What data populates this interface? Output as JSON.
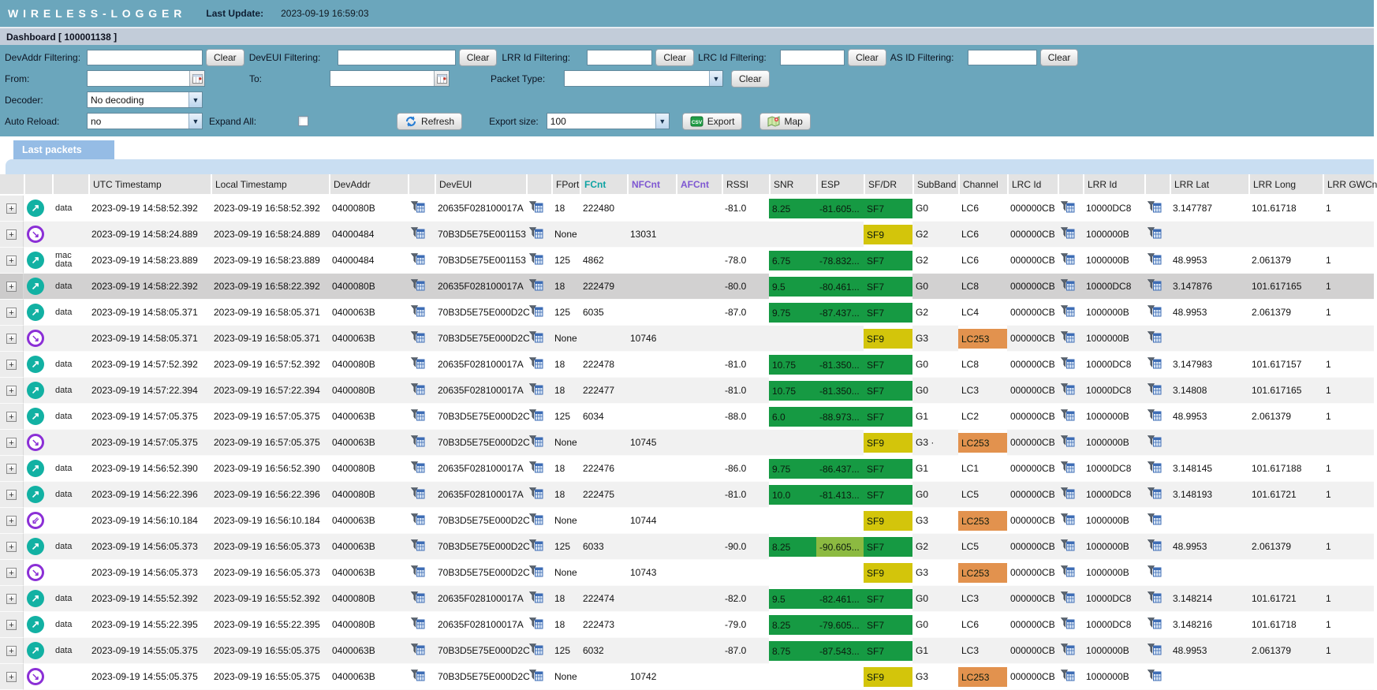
{
  "topbar": {
    "title": "W I R E L E S S - L O G G E R",
    "last_update_label": "Last Update:",
    "last_update_value": "2023-09-19 16:59:03"
  },
  "dashboard": {
    "title": "Dashboard [ 100001138 ]"
  },
  "filters": {
    "devaddr_label": "DevAddr Filtering:",
    "deveui_label": "DevEUI Filtering:",
    "lrrid_label": "LRR Id Filtering:",
    "lrcid_label": "LRC Id Filtering:",
    "asid_label": "AS ID Filtering:",
    "clear_label": "Clear",
    "from_label": "From:",
    "to_label": "To:",
    "packet_type_label": "Packet Type:",
    "packet_type_value": "",
    "decoder_label": "Decoder:",
    "decoder_value": "No decoding",
    "auto_reload_label": "Auto Reload:",
    "auto_reload_value": "no",
    "expand_all_label": "Expand All:",
    "refresh_label": "Refresh",
    "export_size_label": "Export size:",
    "export_size_value": "100",
    "export_label": "Export",
    "map_label": "Map"
  },
  "tab": {
    "label": "Last packets"
  },
  "colors": {
    "topbar_teal": "#6ba6bc",
    "dashbar": "#c2ccd9",
    "tab_blue": "#95bce5",
    "tab_strip": "#c9def2",
    "good_green": "#169a43",
    "mid_green": "#8cba41",
    "warn_yellow": "#d3c50b",
    "alert_orange": "#e2924e",
    "uplink_teal": "#12b1a3",
    "downlink_purple": "#8b2fd6",
    "fcnt_header_teal": "#0fa3a3",
    "nfcnt_header_purple": "#7e57d2"
  },
  "table": {
    "headers": {
      "utc": "UTC Timestamp",
      "local": "Local Timestamp",
      "devaddr": "DevAddr",
      "deveui": "DevEUI",
      "fport": "FPort",
      "fcnt": "FCnt",
      "nfcnt": "NFCnt",
      "afcnt": "AFCnt",
      "rssi": "RSSI",
      "snr": "SNR",
      "esp": "ESP",
      "sf": "SF/DR",
      "subband": "SubBand",
      "channel": "Channel",
      "lrcid": "LRC Id",
      "lrrid": "LRR Id",
      "lrrlat": "LRR Lat",
      "lrrlong": "LRR Long",
      "gwcn": "LRR GWCn"
    },
    "rows": [
      {
        "dir": "up",
        "type": "data",
        "utc": "2023-09-19 14:58:52.392",
        "local": "2023-09-19 16:58:52.392",
        "devaddr": "0400080B",
        "deveui": "20635F028100017A",
        "fport": "18",
        "fcnt": "222480",
        "nfcnt": "",
        "afcnt": "",
        "rssi": "-81.0",
        "snr": "8.25",
        "esp": "-81.605...",
        "sf": "SF7",
        "subband": "G0",
        "channel": "LC6",
        "channel_alert": false,
        "lrcid": "000000CB",
        "lrrid": "10000DC8",
        "lrrlat": "3.147787",
        "lrrlong": "101.61718",
        "gwcn": "1",
        "selected": false
      },
      {
        "dir": "down",
        "type": "",
        "utc": "2023-09-19 14:58:24.889",
        "local": "2023-09-19 16:58:24.889",
        "devaddr": "04000484",
        "deveui": "70B3D5E75E001153",
        "fport": "None",
        "fcnt": "",
        "nfcnt": "13031",
        "afcnt": "",
        "rssi": "",
        "snr": "",
        "esp": "",
        "sf": "SF9",
        "subband": "G2",
        "channel": "LC6",
        "channel_alert": false,
        "lrcid": "000000CB",
        "lrrid": "1000000B",
        "lrrlat": "",
        "lrrlong": "",
        "gwcn": "",
        "selected": false
      },
      {
        "dir": "up",
        "type": "mac data",
        "utc": "2023-09-19 14:58:23.889",
        "local": "2023-09-19 16:58:23.889",
        "devaddr": "04000484",
        "deveui": "70B3D5E75E001153",
        "fport": "125",
        "fcnt": "4862",
        "nfcnt": "",
        "afcnt": "",
        "rssi": "-78.0",
        "snr": "6.75",
        "esp": "-78.832...",
        "sf": "SF7",
        "subband": "G2",
        "channel": "LC6",
        "channel_alert": false,
        "lrcid": "000000CB",
        "lrrid": "1000000B",
        "lrrlat": "48.9953",
        "lrrlong": "2.061379",
        "gwcn": "1",
        "selected": false
      },
      {
        "dir": "up",
        "type": "data",
        "utc": "2023-09-19 14:58:22.392",
        "local": "2023-09-19 16:58:22.392",
        "devaddr": "0400080B",
        "deveui": "20635F028100017A",
        "fport": "18",
        "fcnt": "222479",
        "nfcnt": "",
        "afcnt": "",
        "rssi": "-80.0",
        "snr": "9.5",
        "esp": "-80.461...",
        "sf": "SF7",
        "subband": "G0",
        "channel": "LC8",
        "channel_alert": false,
        "lrcid": "000000CB",
        "lrrid": "10000DC8",
        "lrrlat": "3.147876",
        "lrrlong": "101.617165",
        "gwcn": "1",
        "selected": true
      },
      {
        "dir": "up",
        "type": "data",
        "utc": "2023-09-19 14:58:05.371",
        "local": "2023-09-19 16:58:05.371",
        "devaddr": "0400063B",
        "deveui": "70B3D5E75E000D2C",
        "fport": "125",
        "fcnt": "6035",
        "nfcnt": "",
        "afcnt": "",
        "rssi": "-87.0",
        "snr": "9.75",
        "esp": "-87.437...",
        "sf": "SF7",
        "subband": "G2",
        "channel": "LC4",
        "channel_alert": false,
        "lrcid": "000000CB",
        "lrrid": "1000000B",
        "lrrlat": "48.9953",
        "lrrlong": "2.061379",
        "gwcn": "1",
        "selected": false
      },
      {
        "dir": "down",
        "type": "",
        "utc": "2023-09-19 14:58:05.371",
        "local": "2023-09-19 16:58:05.371",
        "devaddr": "0400063B",
        "deveui": "70B3D5E75E000D2C",
        "fport": "None",
        "fcnt": "",
        "nfcnt": "10746",
        "afcnt": "",
        "rssi": "",
        "snr": "",
        "esp": "",
        "sf": "SF9",
        "subband": "G3",
        "channel": "LC253",
        "channel_alert": true,
        "lrcid": "000000CB",
        "lrrid": "1000000B",
        "lrrlat": "",
        "lrrlong": "",
        "gwcn": "",
        "selected": false
      },
      {
        "dir": "up",
        "type": "data",
        "utc": "2023-09-19 14:57:52.392",
        "local": "2023-09-19 16:57:52.392",
        "devaddr": "0400080B",
        "deveui": "20635F028100017A",
        "fport": "18",
        "fcnt": "222478",
        "nfcnt": "",
        "afcnt": "",
        "rssi": "-81.0",
        "snr": "10.75",
        "esp": "-81.350...",
        "sf": "SF7",
        "subband": "G0",
        "channel": "LC8",
        "channel_alert": false,
        "lrcid": "000000CB",
        "lrrid": "10000DC8",
        "lrrlat": "3.147983",
        "lrrlong": "101.617157",
        "gwcn": "1",
        "selected": false
      },
      {
        "dir": "up",
        "type": "data",
        "utc": "2023-09-19 14:57:22.394",
        "local": "2023-09-19 16:57:22.394",
        "devaddr": "0400080B",
        "deveui": "20635F028100017A",
        "fport": "18",
        "fcnt": "222477",
        "nfcnt": "",
        "afcnt": "",
        "rssi": "-81.0",
        "snr": "10.75",
        "esp": "-81.350...",
        "sf": "SF7",
        "subband": "G0",
        "channel": "LC3",
        "channel_alert": false,
        "lrcid": "000000CB",
        "lrrid": "10000DC8",
        "lrrlat": "3.14808",
        "lrrlong": "101.617165",
        "gwcn": "1",
        "selected": false
      },
      {
        "dir": "up",
        "type": "data",
        "utc": "2023-09-19 14:57:05.375",
        "local": "2023-09-19 16:57:05.375",
        "devaddr": "0400063B",
        "deveui": "70B3D5E75E000D2C",
        "fport": "125",
        "fcnt": "6034",
        "nfcnt": "",
        "afcnt": "",
        "rssi": "-88.0",
        "snr": "6.0",
        "esp": "-88.973...",
        "sf": "SF7",
        "subband": "G1",
        "channel": "LC2",
        "channel_alert": false,
        "lrcid": "000000CB",
        "lrrid": "1000000B",
        "lrrlat": "48.9953",
        "lrrlong": "2.061379",
        "gwcn": "1",
        "selected": false
      },
      {
        "dir": "down",
        "type": "",
        "utc": "2023-09-19 14:57:05.375",
        "local": "2023-09-19 16:57:05.375",
        "devaddr": "0400063B",
        "deveui": "70B3D5E75E000D2C",
        "fport": "None",
        "fcnt": "",
        "nfcnt": "10745",
        "afcnt": "",
        "rssi": "",
        "snr": "",
        "esp": "",
        "sf": "SF9",
        "subband": "G3",
        "subband_suffix": "  ·",
        "channel": "LC253",
        "channel_alert": true,
        "lrcid": "000000CB",
        "lrrid": "1000000B",
        "lrrlat": "",
        "lrrlong": "",
        "gwcn": "",
        "selected": false
      },
      {
        "dir": "up",
        "type": "data",
        "utc": "2023-09-19 14:56:52.390",
        "local": "2023-09-19 16:56:52.390",
        "devaddr": "0400080B",
        "deveui": "20635F028100017A",
        "fport": "18",
        "fcnt": "222476",
        "nfcnt": "",
        "afcnt": "",
        "rssi": "-86.0",
        "snr": "9.75",
        "esp": "-86.437...",
        "sf": "SF7",
        "subband": "G1",
        "channel": "LC1",
        "channel_alert": false,
        "lrcid": "000000CB",
        "lrrid": "10000DC8",
        "lrrlat": "3.148145",
        "lrrlong": "101.617188",
        "gwcn": "1",
        "selected": false
      },
      {
        "dir": "up",
        "type": "data",
        "utc": "2023-09-19 14:56:22.396",
        "local": "2023-09-19 16:56:22.396",
        "devaddr": "0400080B",
        "deveui": "20635F028100017A",
        "fport": "18",
        "fcnt": "222475",
        "nfcnt": "",
        "afcnt": "",
        "rssi": "-81.0",
        "snr": "10.0",
        "esp": "-81.413...",
        "sf": "SF7",
        "subband": "G0",
        "channel": "LC5",
        "channel_alert": false,
        "lrcid": "000000CB",
        "lrrid": "10000DC8",
        "lrrlat": "3.148193",
        "lrrlong": "101.61721",
        "gwcn": "1",
        "selected": false
      },
      {
        "dir": "down-multi",
        "type": "",
        "utc": "2023-09-19 14:56:10.184",
        "local": "2023-09-19 16:56:10.184",
        "devaddr": "0400063B",
        "deveui": "70B3D5E75E000D2C",
        "fport": "None",
        "fcnt": "",
        "nfcnt": "10744",
        "afcnt": "",
        "rssi": "",
        "snr": "",
        "esp": "",
        "sf": "SF9",
        "subband": "G3",
        "channel": "LC253",
        "channel_alert": true,
        "lrcid": "000000CB",
        "lrrid": "1000000B",
        "lrrlat": "",
        "lrrlong": "",
        "gwcn": "",
        "selected": false
      },
      {
        "dir": "up",
        "type": "data",
        "utc": "2023-09-19 14:56:05.373",
        "local": "2023-09-19 16:56:05.373",
        "devaddr": "0400063B",
        "deveui": "70B3D5E75E000D2C",
        "fport": "125",
        "fcnt": "6033",
        "nfcnt": "",
        "afcnt": "",
        "rssi": "-90.0",
        "snr": "8.25",
        "esp": "-90.605...",
        "esp_shade": "light",
        "sf": "SF7",
        "subband": "G2",
        "channel": "LC5",
        "channel_alert": false,
        "lrcid": "000000CB",
        "lrrid": "1000000B",
        "lrrlat": "48.9953",
        "lrrlong": "2.061379",
        "gwcn": "1",
        "selected": false
      },
      {
        "dir": "down",
        "type": "",
        "utc": "2023-09-19 14:56:05.373",
        "local": "2023-09-19 16:56:05.373",
        "devaddr": "0400063B",
        "deveui": "70B3D5E75E000D2C",
        "fport": "None",
        "fcnt": "",
        "nfcnt": "10743",
        "afcnt": "",
        "rssi": "",
        "snr": "",
        "esp": "",
        "sf": "SF9",
        "subband": "G3",
        "channel": "LC253",
        "channel_alert": true,
        "lrcid": "000000CB",
        "lrrid": "1000000B",
        "lrrlat": "",
        "lrrlong": "",
        "gwcn": "",
        "selected": false
      },
      {
        "dir": "up",
        "type": "data",
        "utc": "2023-09-19 14:55:52.392",
        "local": "2023-09-19 16:55:52.392",
        "devaddr": "0400080B",
        "deveui": "20635F028100017A",
        "fport": "18",
        "fcnt": "222474",
        "nfcnt": "",
        "afcnt": "",
        "rssi": "-82.0",
        "snr": "9.5",
        "esp": "-82.461...",
        "sf": "SF7",
        "subband": "G0",
        "channel": "LC3",
        "channel_alert": false,
        "lrcid": "000000CB",
        "lrrid": "10000DC8",
        "lrrlat": "3.148214",
        "lrrlong": "101.61721",
        "gwcn": "1",
        "selected": false
      },
      {
        "dir": "up",
        "type": "data",
        "utc": "2023-09-19 14:55:22.395",
        "local": "2023-09-19 16:55:22.395",
        "devaddr": "0400080B",
        "deveui": "20635F028100017A",
        "fport": "18",
        "fcnt": "222473",
        "nfcnt": "",
        "afcnt": "",
        "rssi": "-79.0",
        "snr": "8.25",
        "esp": "-79.605...",
        "sf": "SF7",
        "subband": "G0",
        "channel": "LC6",
        "channel_alert": false,
        "lrcid": "000000CB",
        "lrrid": "10000DC8",
        "lrrlat": "3.148216",
        "lrrlong": "101.61718",
        "gwcn": "1",
        "selected": false
      },
      {
        "dir": "up",
        "type": "data",
        "utc": "2023-09-19 14:55:05.375",
        "local": "2023-09-19 16:55:05.375",
        "devaddr": "0400063B",
        "deveui": "70B3D5E75E000D2C",
        "fport": "125",
        "fcnt": "6032",
        "nfcnt": "",
        "afcnt": "",
        "rssi": "-87.0",
        "snr": "8.75",
        "esp": "-87.543...",
        "sf": "SF7",
        "subband": "G1",
        "channel": "LC3",
        "channel_alert": false,
        "lrcid": "000000CB",
        "lrrid": "1000000B",
        "lrrlat": "48.9953",
        "lrrlong": "2.061379",
        "gwcn": "1",
        "selected": false
      },
      {
        "dir": "down",
        "type": "",
        "utc": "2023-09-19 14:55:05.375",
        "local": "2023-09-19 16:55:05.375",
        "devaddr": "0400063B",
        "deveui": "70B3D5E75E000D2C",
        "fport": "None",
        "fcnt": "",
        "nfcnt": "10742",
        "afcnt": "",
        "rssi": "",
        "snr": "",
        "esp": "",
        "sf": "SF9",
        "subband": "G3",
        "channel": "LC253",
        "channel_alert": true,
        "lrcid": "000000CB",
        "lrrid": "1000000B",
        "lrrlat": "",
        "lrrlong": "",
        "gwcn": "",
        "selected": false
      }
    ]
  }
}
